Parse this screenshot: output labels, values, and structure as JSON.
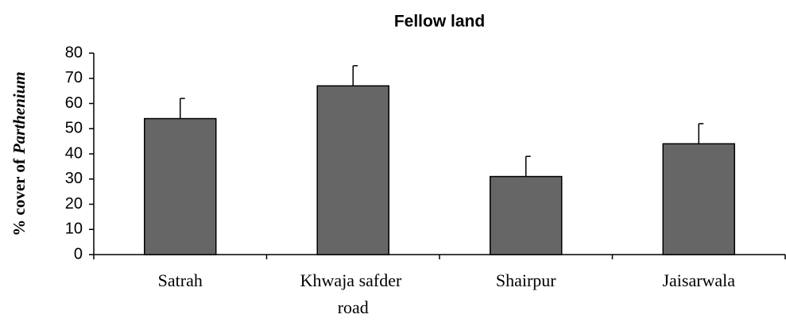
{
  "chart_data": {
    "type": "bar",
    "title": "Fellow land",
    "ylabel": [
      "% cover of",
      "Parthenium"
    ],
    "categories": [
      "Satrah",
      "Khwaja safder road",
      "Shairpur",
      "Jaisarwala"
    ],
    "values": [
      54,
      67,
      31,
      44
    ],
    "errors": [
      8,
      8,
      8,
      8
    ],
    "color": "#666666",
    "ylim": [
      0,
      80
    ],
    "yticks": [
      0,
      10,
      20,
      30,
      40,
      50,
      60,
      70,
      80
    ],
    "grid": false
  }
}
